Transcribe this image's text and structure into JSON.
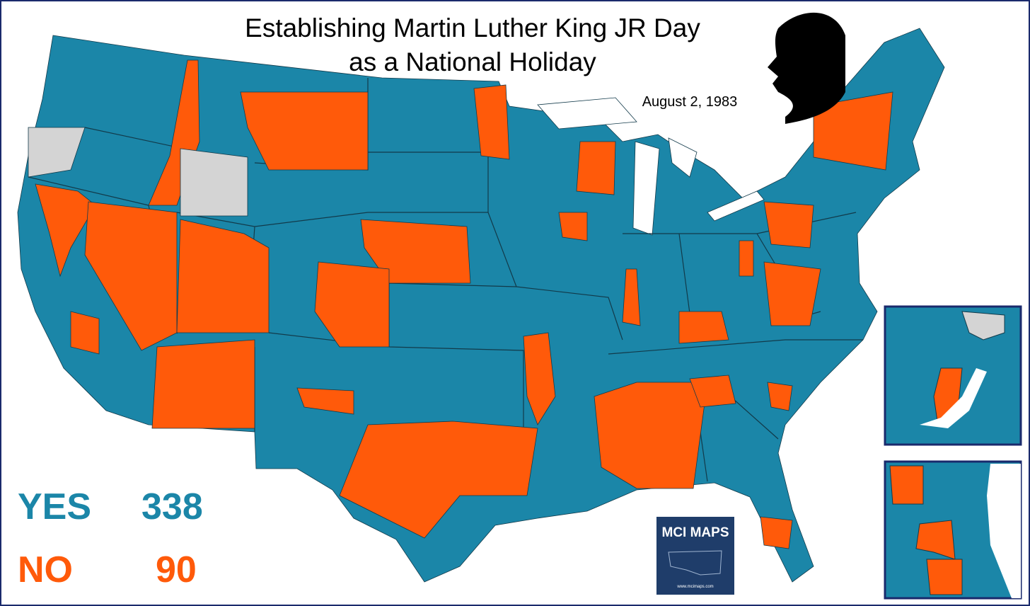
{
  "header": {
    "title_lines": [
      "Establishing Martin Luther King JR Day",
      "as a National Holiday"
    ],
    "date": "August 2, 1983"
  },
  "legend": [
    {
      "label": "YES",
      "value": 338,
      "color": "#1b86a8"
    },
    {
      "label": "NO",
      "value": 90,
      "color": "#ff5a0a"
    }
  ],
  "logo": {
    "text": "MCI MAPS",
    "url": "www.mcimaps.com"
  }
}
